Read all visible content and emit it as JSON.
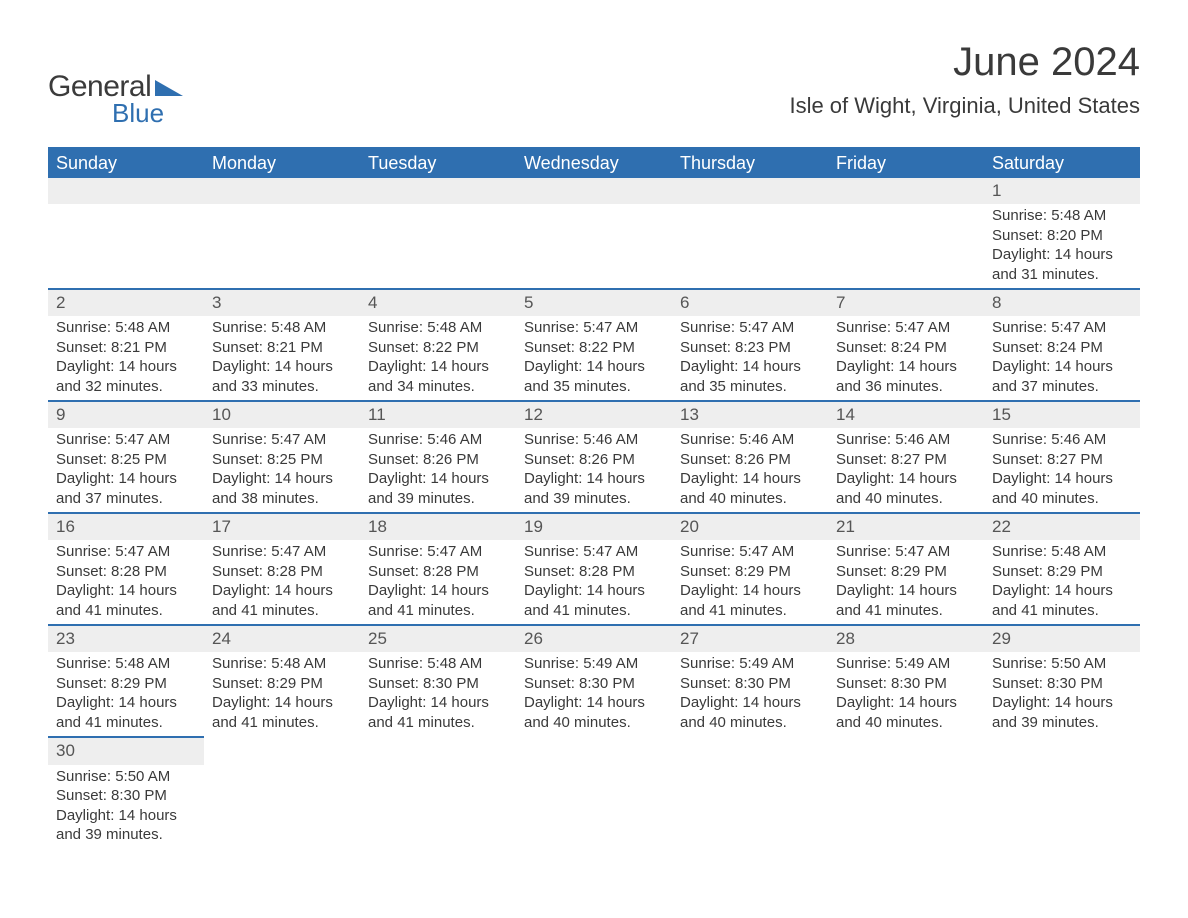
{
  "logo": {
    "line1": "General",
    "line2": "Blue"
  },
  "header": {
    "month_title": "June 2024",
    "location": "Isle of Wight, Virginia, United States"
  },
  "colors": {
    "header_bg": "#2f6fb0",
    "header_text": "#ffffff",
    "daynum_bg": "#eeeeee",
    "row_divider": "#2f6fb0",
    "body_text": "#3a3a3a",
    "page_bg": "#ffffff"
  },
  "typography": {
    "month_title_fontsize": 40,
    "location_fontsize": 22,
    "weekday_fontsize": 18,
    "daynum_fontsize": 17,
    "detail_fontsize": 15
  },
  "weekdays": [
    "Sunday",
    "Monday",
    "Tuesday",
    "Wednesday",
    "Thursday",
    "Friday",
    "Saturday"
  ],
  "weeks": [
    [
      null,
      null,
      null,
      null,
      null,
      null,
      {
        "n": "1",
        "sunrise": "Sunrise: 5:48 AM",
        "sunset": "Sunset: 8:20 PM",
        "d1": "Daylight: 14 hours",
        "d2": "and 31 minutes."
      }
    ],
    [
      {
        "n": "2",
        "sunrise": "Sunrise: 5:48 AM",
        "sunset": "Sunset: 8:21 PM",
        "d1": "Daylight: 14 hours",
        "d2": "and 32 minutes."
      },
      {
        "n": "3",
        "sunrise": "Sunrise: 5:48 AM",
        "sunset": "Sunset: 8:21 PM",
        "d1": "Daylight: 14 hours",
        "d2": "and 33 minutes."
      },
      {
        "n": "4",
        "sunrise": "Sunrise: 5:48 AM",
        "sunset": "Sunset: 8:22 PM",
        "d1": "Daylight: 14 hours",
        "d2": "and 34 minutes."
      },
      {
        "n": "5",
        "sunrise": "Sunrise: 5:47 AM",
        "sunset": "Sunset: 8:22 PM",
        "d1": "Daylight: 14 hours",
        "d2": "and 35 minutes."
      },
      {
        "n": "6",
        "sunrise": "Sunrise: 5:47 AM",
        "sunset": "Sunset: 8:23 PM",
        "d1": "Daylight: 14 hours",
        "d2": "and 35 minutes."
      },
      {
        "n": "7",
        "sunrise": "Sunrise: 5:47 AM",
        "sunset": "Sunset: 8:24 PM",
        "d1": "Daylight: 14 hours",
        "d2": "and 36 minutes."
      },
      {
        "n": "8",
        "sunrise": "Sunrise: 5:47 AM",
        "sunset": "Sunset: 8:24 PM",
        "d1": "Daylight: 14 hours",
        "d2": "and 37 minutes."
      }
    ],
    [
      {
        "n": "9",
        "sunrise": "Sunrise: 5:47 AM",
        "sunset": "Sunset: 8:25 PM",
        "d1": "Daylight: 14 hours",
        "d2": "and 37 minutes."
      },
      {
        "n": "10",
        "sunrise": "Sunrise: 5:47 AM",
        "sunset": "Sunset: 8:25 PM",
        "d1": "Daylight: 14 hours",
        "d2": "and 38 minutes."
      },
      {
        "n": "11",
        "sunrise": "Sunrise: 5:46 AM",
        "sunset": "Sunset: 8:26 PM",
        "d1": "Daylight: 14 hours",
        "d2": "and 39 minutes."
      },
      {
        "n": "12",
        "sunrise": "Sunrise: 5:46 AM",
        "sunset": "Sunset: 8:26 PM",
        "d1": "Daylight: 14 hours",
        "d2": "and 39 minutes."
      },
      {
        "n": "13",
        "sunrise": "Sunrise: 5:46 AM",
        "sunset": "Sunset: 8:26 PM",
        "d1": "Daylight: 14 hours",
        "d2": "and 40 minutes."
      },
      {
        "n": "14",
        "sunrise": "Sunrise: 5:46 AM",
        "sunset": "Sunset: 8:27 PM",
        "d1": "Daylight: 14 hours",
        "d2": "and 40 minutes."
      },
      {
        "n": "15",
        "sunrise": "Sunrise: 5:46 AM",
        "sunset": "Sunset: 8:27 PM",
        "d1": "Daylight: 14 hours",
        "d2": "and 40 minutes."
      }
    ],
    [
      {
        "n": "16",
        "sunrise": "Sunrise: 5:47 AM",
        "sunset": "Sunset: 8:28 PM",
        "d1": "Daylight: 14 hours",
        "d2": "and 41 minutes."
      },
      {
        "n": "17",
        "sunrise": "Sunrise: 5:47 AM",
        "sunset": "Sunset: 8:28 PM",
        "d1": "Daylight: 14 hours",
        "d2": "and 41 minutes."
      },
      {
        "n": "18",
        "sunrise": "Sunrise: 5:47 AM",
        "sunset": "Sunset: 8:28 PM",
        "d1": "Daylight: 14 hours",
        "d2": "and 41 minutes."
      },
      {
        "n": "19",
        "sunrise": "Sunrise: 5:47 AM",
        "sunset": "Sunset: 8:28 PM",
        "d1": "Daylight: 14 hours",
        "d2": "and 41 minutes."
      },
      {
        "n": "20",
        "sunrise": "Sunrise: 5:47 AM",
        "sunset": "Sunset: 8:29 PM",
        "d1": "Daylight: 14 hours",
        "d2": "and 41 minutes."
      },
      {
        "n": "21",
        "sunrise": "Sunrise: 5:47 AM",
        "sunset": "Sunset: 8:29 PM",
        "d1": "Daylight: 14 hours",
        "d2": "and 41 minutes."
      },
      {
        "n": "22",
        "sunrise": "Sunrise: 5:48 AM",
        "sunset": "Sunset: 8:29 PM",
        "d1": "Daylight: 14 hours",
        "d2": "and 41 minutes."
      }
    ],
    [
      {
        "n": "23",
        "sunrise": "Sunrise: 5:48 AM",
        "sunset": "Sunset: 8:29 PM",
        "d1": "Daylight: 14 hours",
        "d2": "and 41 minutes."
      },
      {
        "n": "24",
        "sunrise": "Sunrise: 5:48 AM",
        "sunset": "Sunset: 8:29 PM",
        "d1": "Daylight: 14 hours",
        "d2": "and 41 minutes."
      },
      {
        "n": "25",
        "sunrise": "Sunrise: 5:48 AM",
        "sunset": "Sunset: 8:30 PM",
        "d1": "Daylight: 14 hours",
        "d2": "and 41 minutes."
      },
      {
        "n": "26",
        "sunrise": "Sunrise: 5:49 AM",
        "sunset": "Sunset: 8:30 PM",
        "d1": "Daylight: 14 hours",
        "d2": "and 40 minutes."
      },
      {
        "n": "27",
        "sunrise": "Sunrise: 5:49 AM",
        "sunset": "Sunset: 8:30 PM",
        "d1": "Daylight: 14 hours",
        "d2": "and 40 minutes."
      },
      {
        "n": "28",
        "sunrise": "Sunrise: 5:49 AM",
        "sunset": "Sunset: 8:30 PM",
        "d1": "Daylight: 14 hours",
        "d2": "and 40 minutes."
      },
      {
        "n": "29",
        "sunrise": "Sunrise: 5:50 AM",
        "sunset": "Sunset: 8:30 PM",
        "d1": "Daylight: 14 hours",
        "d2": "and 39 minutes."
      }
    ],
    [
      {
        "n": "30",
        "sunrise": "Sunrise: 5:50 AM",
        "sunset": "Sunset: 8:30 PM",
        "d1": "Daylight: 14 hours",
        "d2": "and 39 minutes."
      },
      null,
      null,
      null,
      null,
      null,
      null
    ]
  ]
}
